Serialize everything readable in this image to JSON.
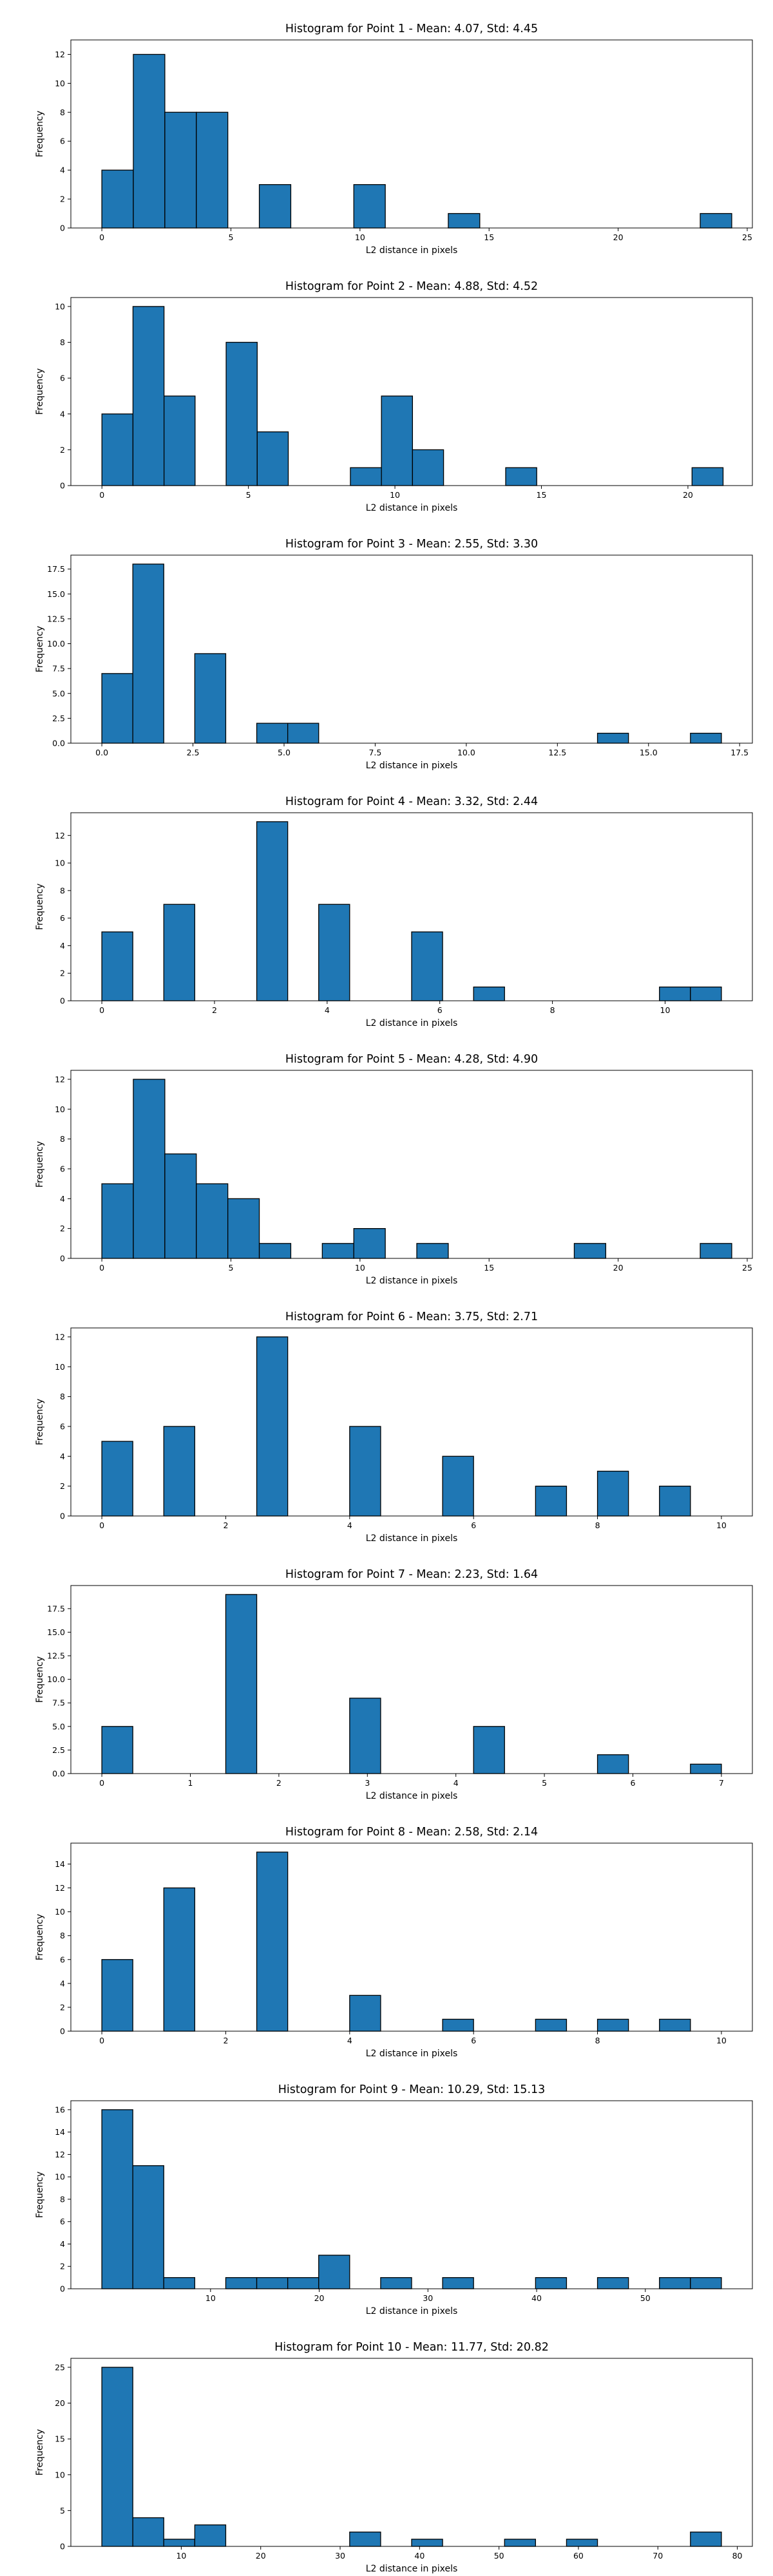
{
  "figure": {
    "background": "#ffffff",
    "bar_color": "#1f77b4",
    "edge_color": "#000000"
  },
  "chart_data": [
    {
      "type": "bar",
      "title": "Histogram for Point 1 - Mean: 4.07, Std: 4.45",
      "xlabel": "L2 distance in pixels",
      "ylabel": "Frequency",
      "xlim": [
        -1.2,
        25.2
      ],
      "ylim": [
        0,
        13
      ],
      "xticks": [
        0,
        5,
        10,
        15,
        20,
        25
      ],
      "xtick_labels": [
        "0",
        "5",
        "10",
        "15",
        "20",
        "25"
      ],
      "yticks": [
        0,
        2,
        4,
        6,
        8,
        10,
        12
      ],
      "ytick_labels": [
        "0",
        "2",
        "4",
        "6",
        "8",
        "10",
        "12"
      ],
      "grid": false,
      "bin_edges": [
        0,
        1.22,
        2.44,
        3.66,
        4.88,
        6.1,
        7.32,
        8.54,
        9.76,
        10.98,
        12.2,
        13.42,
        14.64,
        15.86,
        17.08,
        18.3,
        19.52,
        20.74,
        21.96,
        23.18,
        24.4
      ],
      "counts": [
        4,
        12,
        8,
        8,
        0,
        3,
        0,
        0,
        3,
        0,
        0,
        1,
        0,
        0,
        0,
        0,
        0,
        0,
        0,
        1
      ]
    },
    {
      "type": "bar",
      "title": "Histogram for Point 2 - Mean: 4.88, Std: 4.52",
      "xlabel": "L2 distance in pixels",
      "ylabel": "Frequency",
      "xlim": [
        -1.06,
        22.2
      ],
      "ylim": [
        0,
        10.5
      ],
      "xticks": [
        0,
        5,
        10,
        15,
        20
      ],
      "xtick_labels": [
        "0",
        "5",
        "10",
        "15",
        "20"
      ],
      "yticks": [
        0,
        2,
        4,
        6,
        8,
        10
      ],
      "ytick_labels": [
        "0",
        "2",
        "4",
        "6",
        "8",
        "10"
      ],
      "grid": false,
      "bin_edges": [
        0,
        1.06,
        2.12,
        3.18,
        4.24,
        5.3,
        6.36,
        7.42,
        8.48,
        9.54,
        10.6,
        11.66,
        12.72,
        13.78,
        14.84,
        15.9,
        16.96,
        18.02,
        19.08,
        20.14,
        21.2
      ],
      "counts": [
        4,
        10,
        5,
        0,
        8,
        3,
        0,
        0,
        1,
        5,
        2,
        0,
        0,
        1,
        0,
        0,
        0,
        0,
        0,
        1
      ]
    },
    {
      "type": "bar",
      "title": "Histogram for Point 3 - Mean: 2.55, Std: 3.30",
      "xlabel": "L2 distance in pixels",
      "ylabel": "Frequency",
      "xlim": [
        -0.85,
        17.85
      ],
      "ylim": [
        0,
        18.9
      ],
      "xticks": [
        0,
        2.5,
        5,
        7.5,
        10,
        12.5,
        15,
        17.5
      ],
      "xtick_labels": [
        "0.0",
        "2.5",
        "5.0",
        "7.5",
        "10.0",
        "12.5",
        "15.0",
        "17.5"
      ],
      "yticks": [
        0,
        2.5,
        5,
        7.5,
        10,
        12.5,
        15,
        17.5
      ],
      "ytick_labels": [
        "0.0",
        "2.5",
        "5.0",
        "7.5",
        "10.0",
        "12.5",
        "15.0",
        "17.5"
      ],
      "grid": false,
      "bin_edges": [
        0,
        0.85,
        1.7,
        2.55,
        3.4,
        4.25,
        5.1,
        5.95,
        6.8,
        7.65,
        8.5,
        9.35,
        10.2,
        11.05,
        11.9,
        12.75,
        13.6,
        14.45,
        15.3,
        16.15,
        17.0
      ],
      "counts": [
        7,
        18,
        0,
        9,
        0,
        2,
        2,
        0,
        0,
        0,
        0,
        0,
        0,
        0,
        0,
        0,
        1,
        0,
        0,
        1
      ]
    },
    {
      "type": "bar",
      "title": "Histogram for Point 4 - Mean: 3.32, Std: 2.44",
      "xlabel": "L2 distance in pixels",
      "ylabel": "Frequency",
      "xlim": [
        -0.55,
        11.55
      ],
      "ylim": [
        0,
        13.65
      ],
      "xticks": [
        0,
        2,
        4,
        6,
        8,
        10
      ],
      "xtick_labels": [
        "0",
        "2",
        "4",
        "6",
        "8",
        "10"
      ],
      "yticks": [
        0,
        2,
        4,
        6,
        8,
        10,
        12
      ],
      "ytick_labels": [
        "0",
        "2",
        "4",
        "6",
        "8",
        "10",
        "12"
      ],
      "grid": false,
      "bin_edges": [
        0,
        0.55,
        1.1,
        1.65,
        2.2,
        2.75,
        3.3,
        3.85,
        4.4,
        4.95,
        5.5,
        6.05,
        6.6,
        7.15,
        7.7,
        8.25,
        8.8,
        9.35,
        9.9,
        10.45,
        11.0
      ],
      "counts": [
        5,
        0,
        7,
        0,
        0,
        13,
        0,
        7,
        0,
        0,
        5,
        0,
        1,
        0,
        0,
        0,
        0,
        0,
        1,
        1
      ]
    },
    {
      "type": "bar",
      "title": "Histogram for Point 5 - Mean: 4.28, Std: 4.90",
      "xlabel": "L2 distance in pixels",
      "ylabel": "Frequency",
      "xlim": [
        -1.2,
        25.2
      ],
      "ylim": [
        0,
        12.6
      ],
      "xticks": [
        0,
        5,
        10,
        15,
        20,
        25
      ],
      "xtick_labels": [
        "0",
        "5",
        "10",
        "15",
        "20",
        "25"
      ],
      "yticks": [
        0,
        2,
        4,
        6,
        8,
        10,
        12
      ],
      "ytick_labels": [
        "0",
        "2",
        "4",
        "6",
        "8",
        "10",
        "12"
      ],
      "grid": false,
      "bin_edges": [
        0,
        1.22,
        2.44,
        3.66,
        4.88,
        6.1,
        7.32,
        8.54,
        9.76,
        10.98,
        12.2,
        13.42,
        14.64,
        15.86,
        17.08,
        18.3,
        19.52,
        20.74,
        21.96,
        23.18,
        24.4
      ],
      "counts": [
        5,
        12,
        7,
        5,
        4,
        1,
        0,
        1,
        2,
        0,
        1,
        0,
        0,
        0,
        0,
        1,
        0,
        0,
        0,
        1
      ]
    },
    {
      "type": "bar",
      "title": "Histogram for Point 6 - Mean: 3.75, Std: 2.71",
      "xlabel": "L2 distance in pixels",
      "ylabel": "Frequency",
      "xlim": [
        -0.5,
        10.5
      ],
      "ylim": [
        0,
        12.6
      ],
      "xticks": [
        0,
        2,
        4,
        6,
        8,
        10
      ],
      "xtick_labels": [
        "0",
        "2",
        "4",
        "6",
        "8",
        "10"
      ],
      "yticks": [
        0,
        2,
        4,
        6,
        8,
        10,
        12
      ],
      "ytick_labels": [
        "0",
        "2",
        "4",
        "6",
        "8",
        "10",
        "12"
      ],
      "grid": false,
      "bin_edges": [
        0,
        0.5,
        1.0,
        1.5,
        2.0,
        2.5,
        3.0,
        3.5,
        4.0,
        4.5,
        5.0,
        5.5,
        6.0,
        6.5,
        7.0,
        7.5,
        8.0,
        8.5,
        9.0,
        9.5,
        10.0
      ],
      "counts": [
        5,
        0,
        6,
        0,
        0,
        12,
        0,
        0,
        6,
        0,
        0,
        4,
        0,
        0,
        2,
        0,
        3,
        0,
        2,
        0
      ]
    },
    {
      "type": "bar",
      "title": "Histogram for Point 7 - Mean: 2.23, Std: 1.64",
      "xlabel": "L2 distance in pixels",
      "ylabel": "Frequency",
      "xlim": [
        -0.35,
        7.35
      ],
      "ylim": [
        0,
        19.95
      ],
      "xticks": [
        0,
        1,
        2,
        3,
        4,
        5,
        6,
        7
      ],
      "xtick_labels": [
        "0",
        "1",
        "2",
        "3",
        "4",
        "5",
        "6",
        "7"
      ],
      "yticks": [
        0,
        2.5,
        5,
        7.5,
        10,
        12.5,
        15,
        17.5
      ],
      "ytick_labels": [
        "0.0",
        "2.5",
        "5.0",
        "7.5",
        "10.0",
        "12.5",
        "15.0",
        "17.5"
      ],
      "grid": false,
      "bin_edges": [
        0,
        0.35,
        0.7,
        1.05,
        1.4,
        1.75,
        2.1,
        2.45,
        2.8,
        3.15,
        3.5,
        3.85,
        4.2,
        4.55,
        4.9,
        5.25,
        5.6,
        5.95,
        6.3,
        6.65,
        7.0
      ],
      "counts": [
        5,
        0,
        0,
        0,
        19,
        0,
        0,
        0,
        8,
        0,
        0,
        0,
        5,
        0,
        0,
        0,
        2,
        0,
        0,
        1
      ]
    },
    {
      "type": "bar",
      "title": "Histogram for Point 8 - Mean: 2.58, Std: 2.14",
      "xlabel": "L2 distance in pixels",
      "ylabel": "Frequency",
      "xlim": [
        -0.5,
        10.5
      ],
      "ylim": [
        0,
        15.75
      ],
      "xticks": [
        0,
        2,
        4,
        6,
        8,
        10
      ],
      "xtick_labels": [
        "0",
        "2",
        "4",
        "6",
        "8",
        "10"
      ],
      "yticks": [
        0,
        2,
        4,
        6,
        8,
        10,
        12,
        14
      ],
      "ytick_labels": [
        "0",
        "2",
        "4",
        "6",
        "8",
        "10",
        "12",
        "14"
      ],
      "grid": false,
      "bin_edges": [
        0,
        0.5,
        1.0,
        1.5,
        2.0,
        2.5,
        3.0,
        3.5,
        4.0,
        4.5,
        5.0,
        5.5,
        6.0,
        6.5,
        7.0,
        7.5,
        8.0,
        8.5,
        9.0,
        9.5,
        10.0
      ],
      "counts": [
        6,
        0,
        12,
        0,
        0,
        15,
        0,
        0,
        3,
        0,
        0,
        1,
        0,
        0,
        1,
        0,
        1,
        0,
        1,
        0
      ]
    },
    {
      "type": "bar",
      "title": "Histogram for Point 9 - Mean: 10.29, Std: 15.13",
      "xlabel": "L2 distance in pixels",
      "ylabel": "Frequency",
      "xlim": [
        -2.85,
        59.85
      ],
      "ylim": [
        0,
        16.8
      ],
      "xticks": [
        10,
        20,
        30,
        40,
        50
      ],
      "xtick_labels": [
        "10",
        "20",
        "30",
        "40",
        "50"
      ],
      "yticks": [
        0,
        2,
        4,
        6,
        8,
        10,
        12,
        14,
        16
      ],
      "ytick_labels": [
        "0",
        "2",
        "4",
        "6",
        "8",
        "10",
        "12",
        "14",
        "16"
      ],
      "grid": false,
      "bin_edges": [
        0,
        2.85,
        5.7,
        8.55,
        11.4,
        14.25,
        17.1,
        19.95,
        22.8,
        25.65,
        28.5,
        31.35,
        34.2,
        37.05,
        39.9,
        42.75,
        45.6,
        48.45,
        51.3,
        54.15,
        57.0
      ],
      "counts": [
        16,
        11,
        1,
        0,
        1,
        1,
        1,
        3,
        0,
        1,
        0,
        1,
        0,
        0,
        1,
        0,
        1,
        0,
        1,
        1
      ]
    },
    {
      "type": "bar",
      "title": "Histogram for Point 10 - Mean: 11.77, Std: 20.82",
      "xlabel": "L2 distance in pixels",
      "ylabel": "Frequency",
      "xlim": [
        -3.9,
        81.9
      ],
      "ylim": [
        0,
        26.25
      ],
      "xticks": [
        10,
        20,
        30,
        40,
        50,
        60,
        70,
        80
      ],
      "xtick_labels": [
        "10",
        "20",
        "30",
        "40",
        "50",
        "60",
        "70",
        "80"
      ],
      "yticks": [
        0,
        5,
        10,
        15,
        20,
        25
      ],
      "ytick_labels": [
        "0",
        "5",
        "10",
        "15",
        "20",
        "25"
      ],
      "grid": false,
      "bin_edges": [
        0,
        3.9,
        7.8,
        11.7,
        15.6,
        19.5,
        23.4,
        27.3,
        31.2,
        35.1,
        39.0,
        42.9,
        46.8,
        50.7,
        54.6,
        58.5,
        62.4,
        66.3,
        70.2,
        74.1,
        78.0
      ],
      "counts": [
        25,
        4,
        1,
        3,
        0,
        0,
        0,
        0,
        2,
        0,
        1,
        0,
        0,
        1,
        0,
        1,
        0,
        0,
        0,
        2
      ]
    }
  ]
}
